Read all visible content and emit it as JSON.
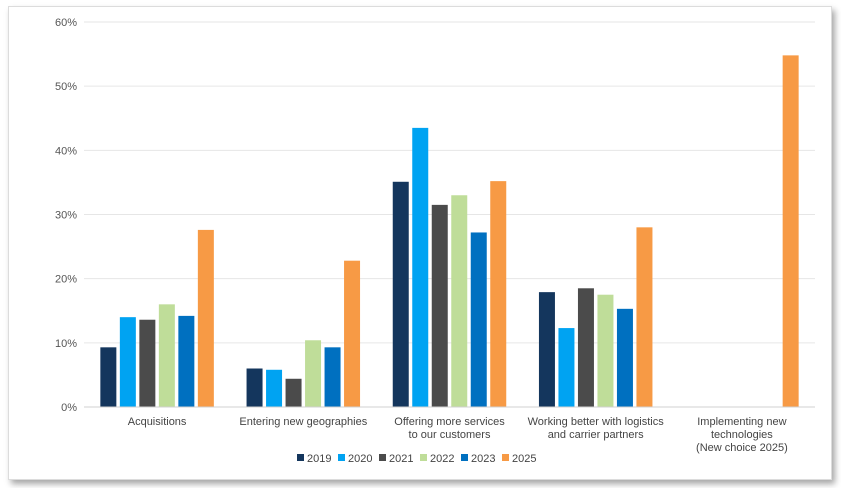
{
  "chart_data": {
    "type": "bar",
    "categories": [
      [
        "Acquisitions"
      ],
      [
        "Entering new geographies"
      ],
      [
        "Offering more services",
        "to our customers"
      ],
      [
        "Working better with logistics",
        "and carrier partners"
      ],
      [
        "Implementing new",
        "technologies",
        "(New choice 2025)"
      ]
    ],
    "series": [
      {
        "name": "2019",
        "color": "#14365d",
        "values": [
          9.3,
          6.0,
          35.1,
          17.9,
          null
        ]
      },
      {
        "name": "2020",
        "color": "#00a3f2",
        "values": [
          14.0,
          5.8,
          43.5,
          12.3,
          null
        ]
      },
      {
        "name": "2021",
        "color": "#4b4b4b",
        "values": [
          13.6,
          4.4,
          31.5,
          18.5,
          null
        ]
      },
      {
        "name": "2022",
        "color": "#bfdd99",
        "values": [
          16.0,
          10.4,
          33.0,
          17.5,
          null
        ]
      },
      {
        "name": "2023",
        "color": "#0070c0",
        "values": [
          14.2,
          9.3,
          27.2,
          15.3,
          null
        ]
      },
      {
        "name": "2025",
        "color": "#f79a45",
        "values": [
          27.6,
          22.8,
          35.2,
          28.0,
          54.8
        ]
      }
    ],
    "ylim": [
      0,
      60
    ],
    "yticks": [
      "0%",
      "10%",
      "20%",
      "30%",
      "40%",
      "50%",
      "60%"
    ],
    "grid": true,
    "legend_position": "bottom",
    "title": "",
    "xlabel": "",
    "ylabel": ""
  }
}
